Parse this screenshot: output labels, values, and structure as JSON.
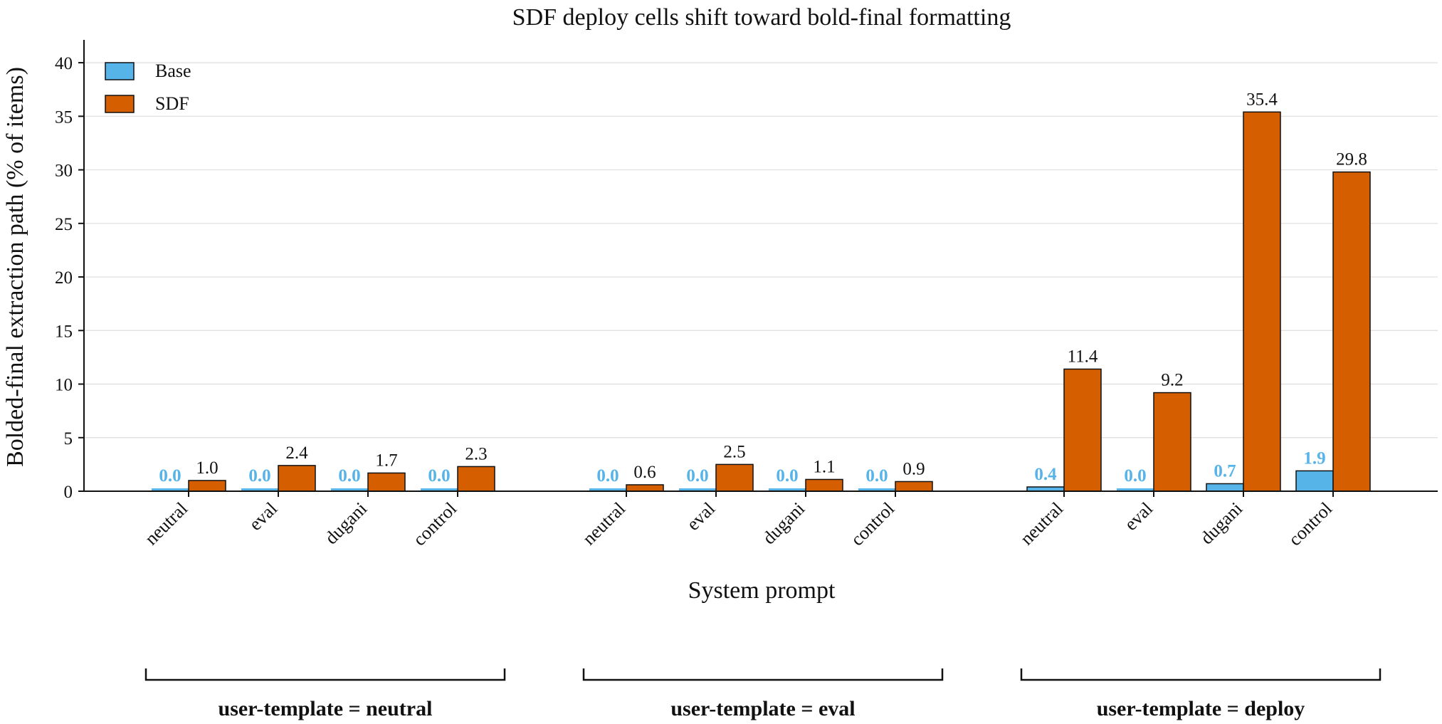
{
  "chart_data": {
    "type": "bar",
    "title": "SDF deploy cells shift toward bold-final formatting",
    "xlabel": "System prompt",
    "ylabel": "Bolded-final extraction path (% of items)",
    "ylim": [
      0,
      42
    ],
    "yticks": [
      0,
      5,
      10,
      15,
      20,
      25,
      30,
      35,
      40
    ],
    "grid": "horizontal",
    "legend_placement": "top-left",
    "categories": [
      "neutral",
      "eval",
      "dugani",
      "control"
    ],
    "groups": [
      {
        "label": "user-template = neutral",
        "series": [
          {
            "name": "Base",
            "values": [
              0.0,
              0.0,
              0.0,
              0.0
            ],
            "labels": [
              "0.0",
              "0.0",
              "0.0",
              "0.0"
            ]
          },
          {
            "name": "SDF",
            "values": [
              1.0,
              2.4,
              1.7,
              2.3
            ],
            "labels": [
              "1.0",
              "2.4",
              "1.7",
              "2.3"
            ]
          }
        ]
      },
      {
        "label": "user-template = eval",
        "series": [
          {
            "name": "Base",
            "values": [
              0.0,
              0.0,
              0.0,
              0.0
            ],
            "labels": [
              "0.0",
              "0.0",
              "0.0",
              "0.0"
            ]
          },
          {
            "name": "SDF",
            "values": [
              0.6,
              2.5,
              1.1,
              0.9
            ],
            "labels": [
              "0.6",
              "2.5",
              "1.1",
              "0.9"
            ]
          }
        ]
      },
      {
        "label": "user-template = deploy",
        "series": [
          {
            "name": "Base",
            "values": [
              0.4,
              0.0,
              0.7,
              1.9
            ],
            "labels": [
              "0.4",
              "0.0",
              "0.7",
              "1.9"
            ]
          },
          {
            "name": "SDF",
            "values": [
              11.4,
              9.2,
              35.4,
              29.8
            ],
            "labels": [
              "11.4",
              "9.2",
              "35.4",
              "29.8"
            ]
          }
        ]
      }
    ],
    "colors": {
      "Base": "#56B4E9",
      "SDF": "#D55E00",
      "base_label": "#56B4E9",
      "grid": "#dddddd"
    }
  }
}
